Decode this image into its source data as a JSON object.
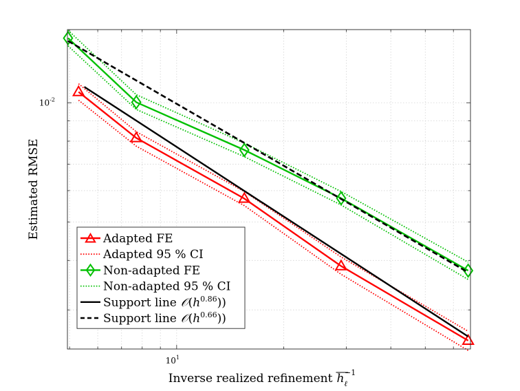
{
  "chart_data": {
    "type": "line",
    "xscale": "log",
    "yscale": "log",
    "xlim": [
      4.93,
      67.0
    ],
    "ylim": [
      0.00239,
      0.0153
    ],
    "grid": true,
    "xlabel": "Inverse realized refinement",
    "xlabel_symbol": "h",
    "xlabel_sub": "ℓ",
    "xlabel_sup": "−1",
    "ylabel": "Estimated RMSE",
    "xticks": [
      {
        "value": 10,
        "base": "10",
        "exp": "1"
      }
    ],
    "yticks": [
      {
        "value": 0.01,
        "base": "10",
        "exp": "-2"
      }
    ],
    "legend_position": "bottom-left",
    "series": [
      {
        "name": "Adapted FE",
        "style": "solid-marker",
        "marker": "triangle",
        "color": "#ff0000",
        "x": [
          5.3,
          7.7,
          15.5,
          29.0,
          66.0
        ],
        "y": [
          0.01065,
          0.00815,
          0.00573,
          0.00387,
          0.00251
        ]
      },
      {
        "name": "Adapted 95 % CI",
        "style": "dotted",
        "color": "#ff0000",
        "group": "adapted-ci",
        "x": [
          5.3,
          7.7,
          15.5,
          29.0,
          66.0
        ],
        "y": [
          0.01117,
          0.00845,
          0.00597,
          0.00408,
          0.00265
        ]
      },
      {
        "name": "Adapted 95 % CI (lower)",
        "style": "dotted",
        "color": "#ff0000",
        "group": "adapted-ci",
        "legend": false,
        "x": [
          5.3,
          7.7,
          15.5,
          29.0,
          66.0
        ],
        "y": [
          0.01015,
          0.00777,
          0.0055,
          0.00369,
          0.00237
        ]
      },
      {
        "name": "Non-adapted FE",
        "style": "solid-marker",
        "marker": "diamond",
        "color": "#00c000",
        "x": [
          4.95,
          7.7,
          15.5,
          29.0,
          66.0
        ],
        "y": [
          0.01456,
          0.01003,
          0.0076,
          0.00574,
          0.00377
        ]
      },
      {
        "name": "Non-adapted 95 % CI",
        "style": "dotted",
        "color": "#00c000",
        "group": "nonadapted-ci",
        "x": [
          4.95,
          7.7,
          15.5,
          29.0,
          66.0
        ],
        "y": [
          0.01524,
          0.01048,
          0.00791,
          0.00597,
          0.00396
        ]
      },
      {
        "name": "Non-adapted 95 % CI (lower)",
        "style": "dotted",
        "color": "#00c000",
        "group": "nonadapted-ci",
        "legend": false,
        "x": [
          4.95,
          7.7,
          15.5,
          29.0,
          66.0
        ],
        "y": [
          0.01392,
          0.00962,
          0.00731,
          0.00552,
          0.00358
        ]
      },
      {
        "name": "Support line",
        "legend_order_exp": "0.86",
        "style": "solid",
        "color": "#000000",
        "x": [
          5.5,
          66.0
        ],
        "y": [
          0.01097,
          0.00257
        ]
      },
      {
        "name": "Support line",
        "legend_order_exp": "0.66",
        "style": "dashed",
        "color": "#000000",
        "x": [
          4.95,
          66.0
        ],
        "y": [
          0.01432,
          0.00373
        ]
      }
    ],
    "legend": [
      {
        "label": "Adapted FE",
        "style": "solid-marker",
        "marker": "triangle",
        "color": "#ff0000"
      },
      {
        "label": "Adapted 95 % CI",
        "style": "dotted",
        "color": "#ff0000"
      },
      {
        "label": "Non-adapted FE",
        "style": "solid-marker",
        "marker": "diamond",
        "color": "#00c000"
      },
      {
        "label": "Non-adapted 95 % CI",
        "style": "dotted",
        "color": "#00c000"
      },
      {
        "label": "Support line",
        "order_symbol": "𝒪",
        "order_var": "h",
        "order_exp": "0.86",
        "style": "solid",
        "color": "#000000"
      },
      {
        "label": "Support line",
        "order_symbol": "𝒪",
        "order_var": "h",
        "order_exp": "0.66",
        "style": "dashed",
        "color": "#000000"
      }
    ]
  }
}
